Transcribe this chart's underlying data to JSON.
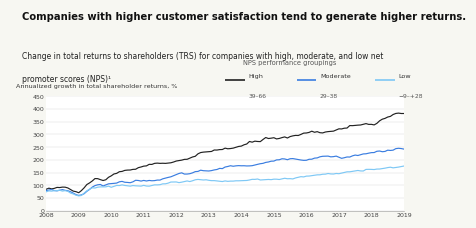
{
  "title": "Companies with higher customer satisfaction tend to generate higher returns.",
  "subtitle_line1": "Change in total returns to shareholders (TRS) for companies with high, moderate, and low net",
  "subtitle_line2": "promoter scores (NPS)¹",
  "ylabel": "Annualized growth in total shareholder returns, %",
  "legend_title": "NPS performance groupings",
  "legend_entries": [
    {
      "label_line1": "High",
      "label_line2": "39–66",
      "color": "#222222"
    },
    {
      "label_line1": "Moderate",
      "label_line2": "29–38",
      "color": "#3a7de0"
    },
    {
      "label_line1": "Low",
      "label_line2": "−9–+28",
      "color": "#7ec8f5"
    }
  ],
  "xmin": 2008.0,
  "xmax": 2019.0,
  "ymin": 0,
  "ymax": 450,
  "yticks": [
    0,
    50,
    100,
    150,
    200,
    250,
    300,
    350,
    400,
    450
  ],
  "xticks": [
    2008,
    2009,
    2010,
    2011,
    2012,
    2013,
    2014,
    2015,
    2016,
    2017,
    2018,
    2019
  ],
  "background_color": "#f7f7f2",
  "plot_bg": "#ffffff"
}
